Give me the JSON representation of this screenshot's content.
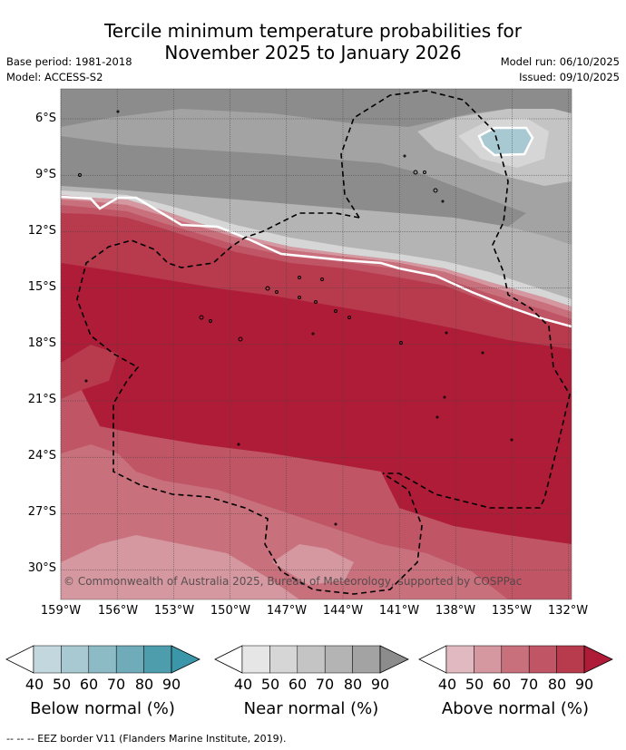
{
  "title_line1": "Tercile minimum temperature probabilities for",
  "title_line2": "November 2025 to January 2026",
  "base_period": "Base period: 1981-2018",
  "model": "Model: ACCESS-S2",
  "model_run": "Model run: 06/10/2025",
  "issued": "Issued: 09/10/2025",
  "copyright": "© Commonwealth of Australia 2025, Bureau of Meteorology, supported by COSPPac",
  "lat_labels": [
    "6°S",
    "9°S",
    "12°S",
    "15°S",
    "18°S",
    "21°S",
    "24°S",
    "27°S",
    "30°S"
  ],
  "lon_labels": [
    "159°W",
    "156°W",
    "153°W",
    "150°W",
    "147°W",
    "144°W",
    "141°W",
    "138°W",
    "135°W",
    "132°W"
  ],
  "colorbars": [
    {
      "label": "Below normal (%)",
      "ticks": [
        "40",
        "50",
        "60",
        "70",
        "80",
        "90"
      ],
      "colors": [
        "#c3d7de",
        "#a8c9d1",
        "#8cbac5",
        "#6fabb9",
        "#4d9dad",
        "#3a96a8"
      ]
    },
    {
      "label": "Near normal (%)",
      "ticks": [
        "40",
        "50",
        "60",
        "70",
        "80",
        "90"
      ],
      "colors": [
        "#e6e6e6",
        "#d6d6d6",
        "#c4c4c4",
        "#b4b4b4",
        "#a3a3a3",
        "#8c8c8c"
      ]
    },
    {
      "label": "Above normal (%)",
      "ticks": [
        "40",
        "50",
        "60",
        "70",
        "80",
        "90"
      ],
      "colors": [
        "#e1b9c0",
        "#d597a0",
        "#c9707d",
        "#bf5565",
        "#b73a4d",
        "#ae1c38"
      ]
    }
  ],
  "footer": "--  --  -- EEZ border V11 (Flanders Marine Institute, 2019)."
}
